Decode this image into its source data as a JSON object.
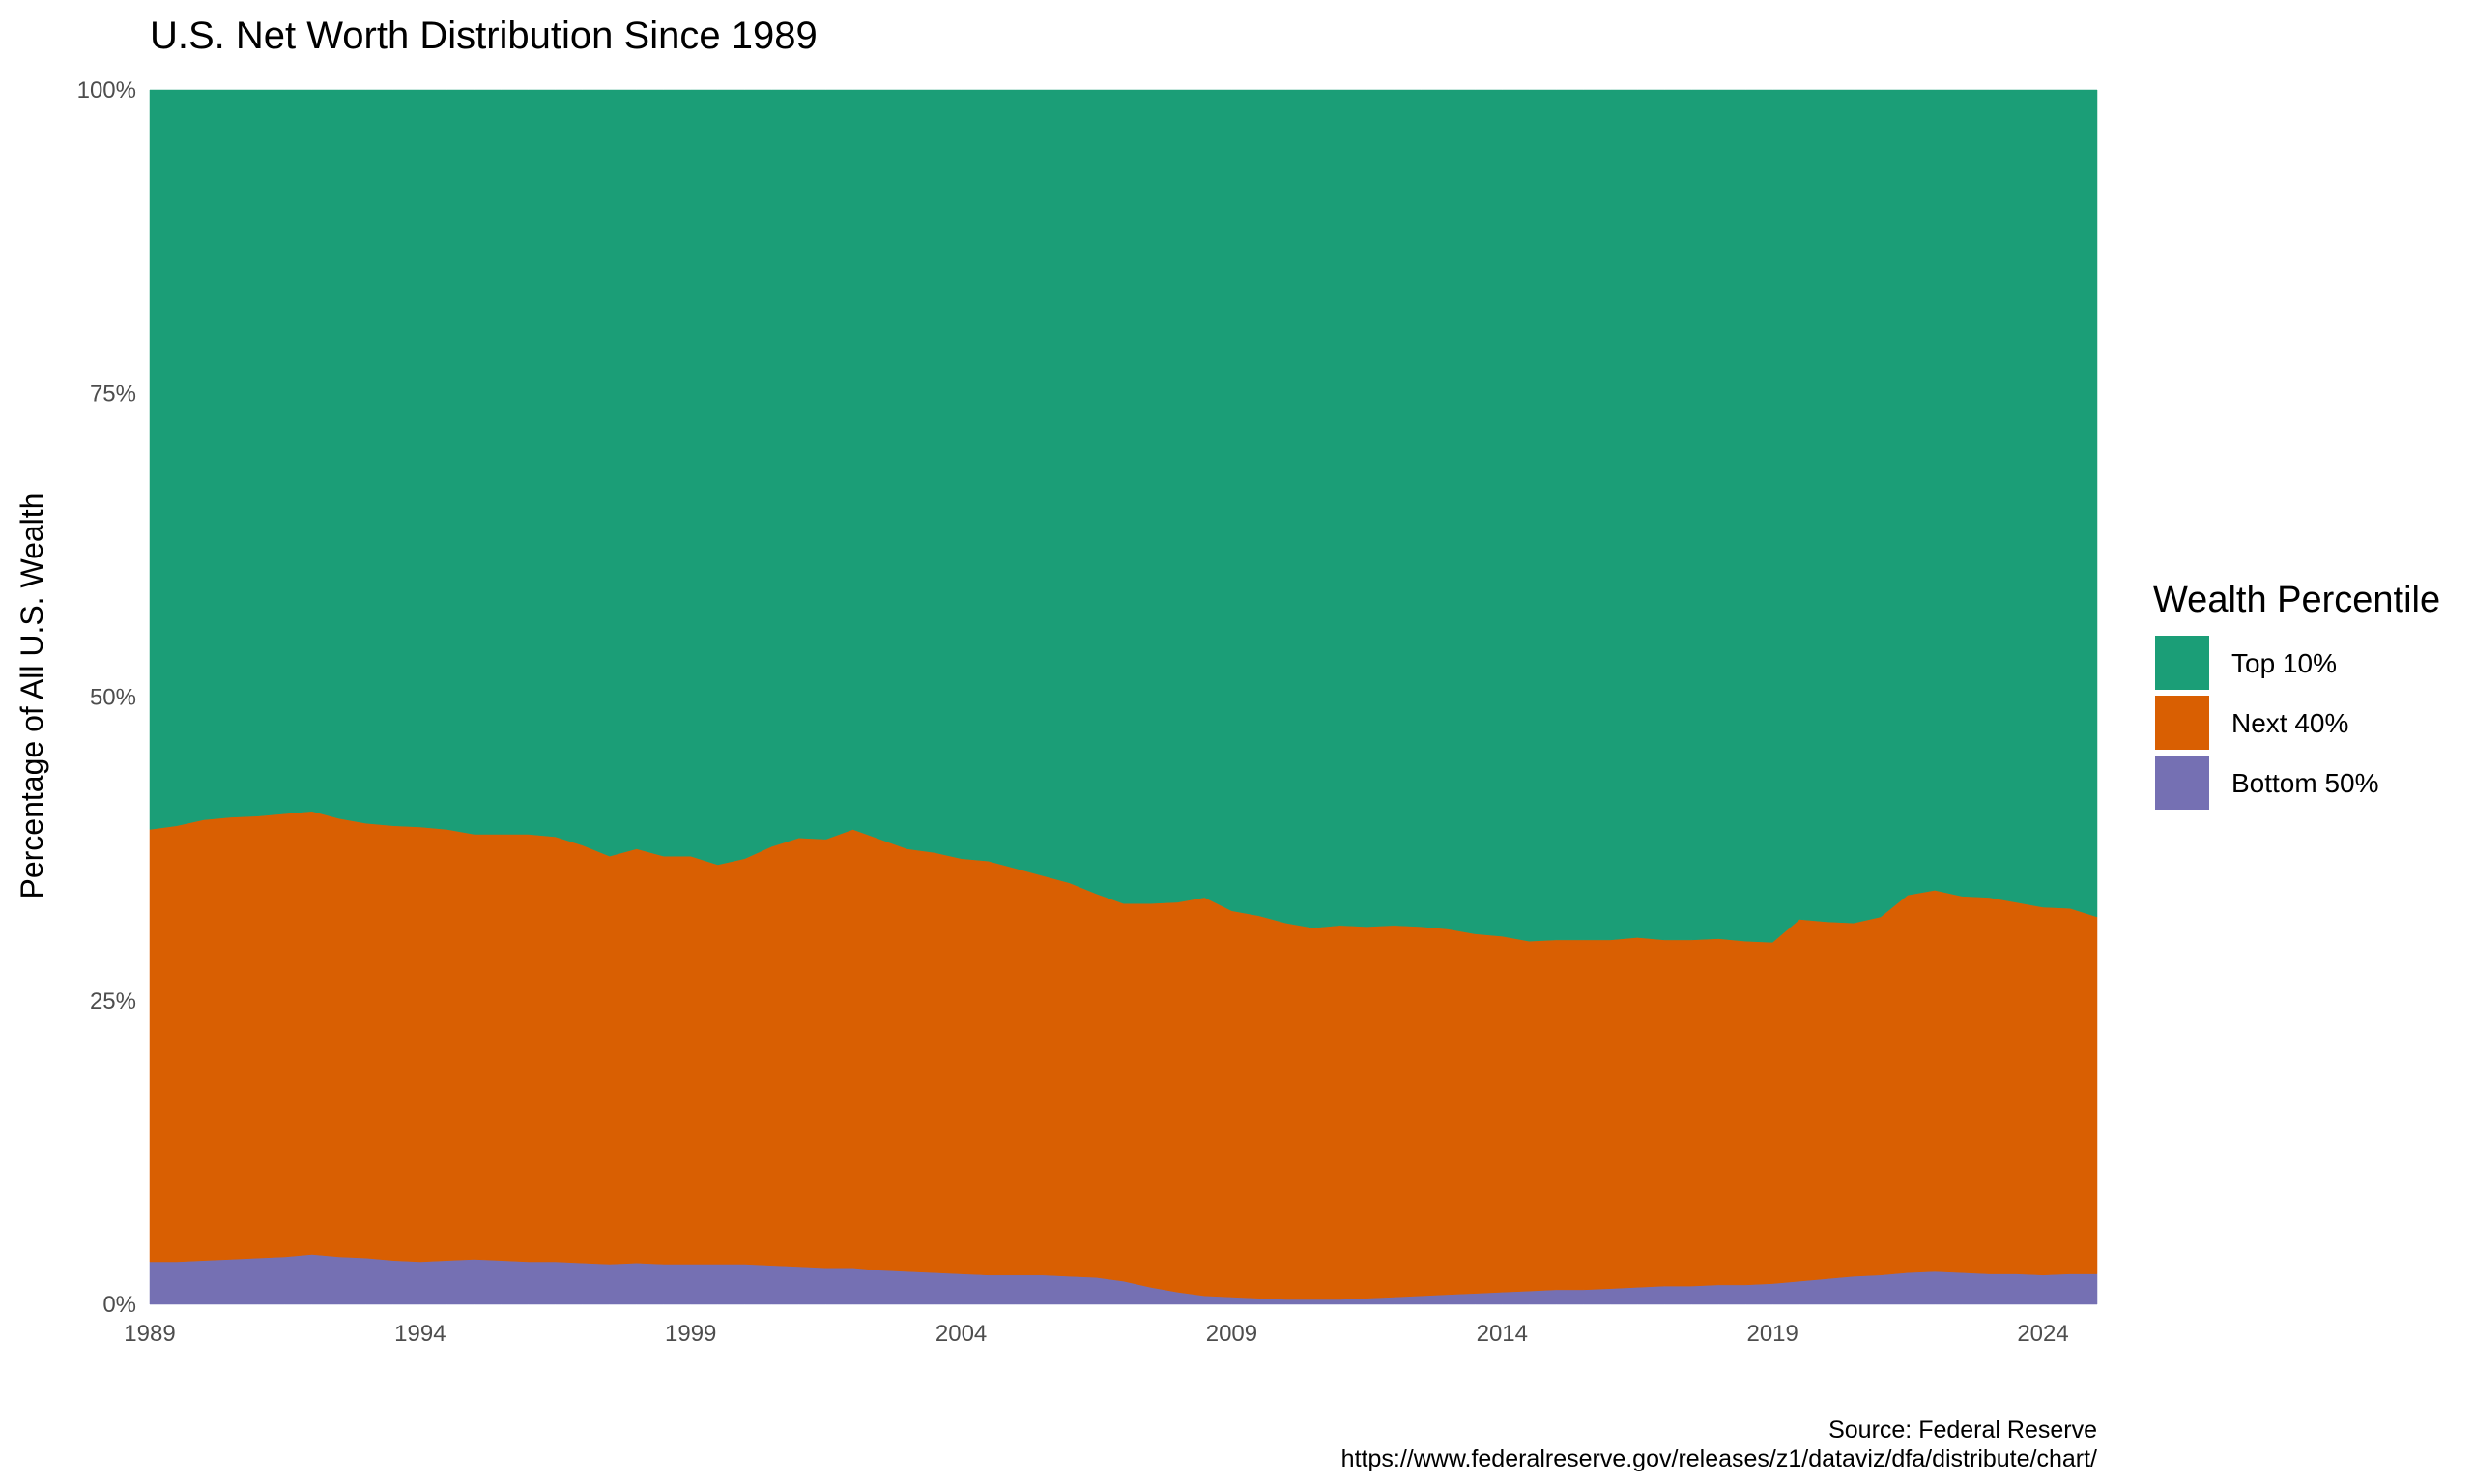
{
  "chart_data": {
    "type": "area",
    "stacked": true,
    "percent_scale": true,
    "title": "U.S. Net Worth Distribution Since 1989",
    "xlabel": "",
    "ylabel": "Percentage of All U.S. Wealth",
    "xlim": [
      1989.0,
      2025.0
    ],
    "ylim": [
      0,
      100
    ],
    "x_ticks": [
      1989,
      1994,
      1999,
      2004,
      2009,
      2014,
      2019,
      2024
    ],
    "x_tick_labels": [
      "1989",
      "1994",
      "1999",
      "2004",
      "2009",
      "2014",
      "2019",
      "2024"
    ],
    "y_ticks": [
      0,
      25,
      50,
      75,
      100
    ],
    "y_tick_labels": [
      "0%",
      "25%",
      "50%",
      "75%",
      "100%"
    ],
    "grid": false,
    "legend": {
      "title": "Wealth Percentile",
      "placement": "right",
      "entries": [
        "Top 10%",
        "Next 40%",
        "Bottom 50%"
      ]
    },
    "caption": [
      "Source: Federal Reserve",
      "https://www.federalreserve.gov/releases/z1/dataviz/dfa/distribute/chart/"
    ],
    "x": [
      1989.0,
      1989.5,
      1990.0,
      1990.5,
      1991.0,
      1991.5,
      1992.0,
      1992.5,
      1993.0,
      1993.5,
      1994.0,
      1994.5,
      1995.0,
      1995.5,
      1996.0,
      1996.5,
      1997.0,
      1997.5,
      1998.0,
      1998.5,
      1999.0,
      1999.5,
      2000.0,
      2000.5,
      2001.0,
      2001.5,
      2002.0,
      2002.5,
      2003.0,
      2003.5,
      2004.0,
      2004.5,
      2005.0,
      2005.5,
      2006.0,
      2006.5,
      2007.0,
      2007.5,
      2008.0,
      2008.5,
      2009.0,
      2009.5,
      2010.0,
      2010.5,
      2011.0,
      2011.5,
      2012.0,
      2012.5,
      2013.0,
      2013.5,
      2014.0,
      2014.5,
      2015.0,
      2015.5,
      2016.0,
      2016.5,
      2017.0,
      2017.5,
      2018.0,
      2018.5,
      2019.0,
      2019.5,
      2020.0,
      2020.5,
      2021.0,
      2021.5,
      2022.0,
      2022.5,
      2023.0,
      2023.5,
      2024.0,
      2024.5,
      2025.0
    ],
    "series": [
      {
        "name": "Bottom 50%",
        "color": "#7570b3",
        "values": [
          3.5,
          3.5,
          3.6,
          3.7,
          3.8,
          3.9,
          4.1,
          3.9,
          3.8,
          3.6,
          3.5,
          3.6,
          3.7,
          3.6,
          3.5,
          3.5,
          3.4,
          3.3,
          3.4,
          3.3,
          3.3,
          3.3,
          3.3,
          3.2,
          3.1,
          3.0,
          3.0,
          2.8,
          2.7,
          2.6,
          2.5,
          2.4,
          2.4,
          2.4,
          2.3,
          2.2,
          1.9,
          1.4,
          1.0,
          0.7,
          0.6,
          0.5,
          0.4,
          0.4,
          0.4,
          0.5,
          0.6,
          0.7,
          0.8,
          0.9,
          1.0,
          1.1,
          1.2,
          1.2,
          1.3,
          1.4,
          1.5,
          1.5,
          1.6,
          1.6,
          1.7,
          1.9,
          2.1,
          2.3,
          2.4,
          2.6,
          2.7,
          2.6,
          2.5,
          2.5,
          2.4,
          2.5,
          2.5
        ]
      },
      {
        "name": "Next 40%",
        "color": "#d95f02",
        "values": [
          35.6,
          35.9,
          36.3,
          36.4,
          36.4,
          36.5,
          36.5,
          36.1,
          35.8,
          35.8,
          35.8,
          35.5,
          35.0,
          35.1,
          35.2,
          35.0,
          34.4,
          33.6,
          34.1,
          33.6,
          33.6,
          32.9,
          33.4,
          34.5,
          35.3,
          35.3,
          36.1,
          35.5,
          34.8,
          34.6,
          34.2,
          34.1,
          33.5,
          32.9,
          32.4,
          31.6,
          31.1,
          31.6,
          32.1,
          32.8,
          31.8,
          31.5,
          31.0,
          30.6,
          30.8,
          30.6,
          30.6,
          30.4,
          30.1,
          29.6,
          29.3,
          28.8,
          28.8,
          28.8,
          28.7,
          28.8,
          28.5,
          28.5,
          28.5,
          28.3,
          28.1,
          29.8,
          29.4,
          29.1,
          29.5,
          31.1,
          31.4,
          31.0,
          31.0,
          30.6,
          30.3,
          30.1,
          29.4
        ]
      },
      {
        "name": "Top 10%",
        "color": "#1b9e77",
        "values": [
          60.9,
          60.6,
          60.1,
          59.9,
          59.8,
          59.6,
          59.4,
          60.0,
          60.4,
          60.6,
          60.7,
          60.9,
          61.3,
          61.3,
          61.3,
          61.5,
          62.2,
          63.1,
          62.5,
          63.1,
          63.1,
          63.8,
          63.3,
          62.3,
          61.6,
          61.7,
          60.9,
          61.7,
          62.5,
          62.8,
          63.3,
          63.5,
          64.1,
          64.7,
          65.3,
          66.2,
          67.0,
          67.0,
          66.9,
          66.5,
          67.6,
          68.0,
          68.6,
          69.0,
          68.8,
          68.9,
          68.8,
          68.9,
          69.1,
          69.5,
          69.7,
          70.1,
          70.0,
          70.0,
          70.0,
          69.8,
          70.0,
          70.0,
          69.9,
          70.1,
          70.2,
          68.3,
          68.5,
          68.6,
          68.1,
          66.3,
          65.9,
          66.4,
          66.5,
          66.9,
          67.3,
          67.4,
          68.1
        ]
      }
    ]
  }
}
